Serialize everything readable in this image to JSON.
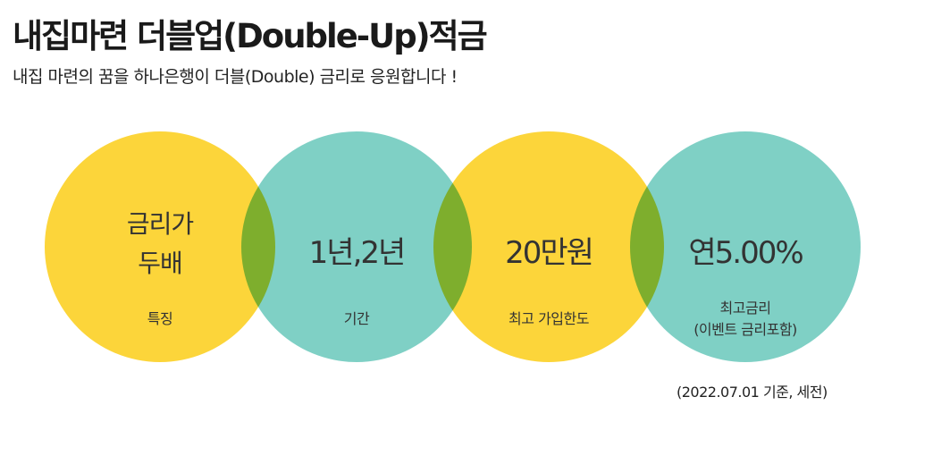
{
  "header": {
    "title": "내집마련 더블업(Double-Up)적금",
    "subtitle": "내집 마련의 꿈을 하나은행이 더블(Double) 금리로 응원합니다 !"
  },
  "colors": {
    "yellow": "#fcd53a",
    "teal": "#7fd0c5"
  },
  "features": [
    {
      "value_line1": "금리가",
      "value_line2": "두배",
      "label": "특징",
      "color": "yellow"
    },
    {
      "value": "1년,2년",
      "label": "기간",
      "color": "teal"
    },
    {
      "value": "20만원",
      "label": "최고 가입한도",
      "color": "yellow"
    },
    {
      "value": "연5.00%",
      "label_line1": "최고금리",
      "label_line2": "(이벤트 금리포함)",
      "color": "teal"
    }
  ],
  "note": "(2022.07.01 기준, 세전)"
}
